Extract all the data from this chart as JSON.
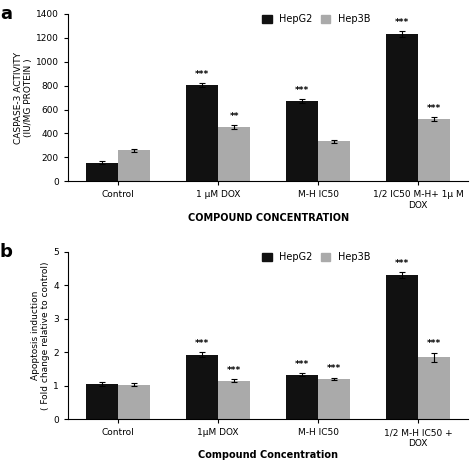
{
  "panel_a": {
    "categories": [
      "Control",
      "1 μM DOX",
      "M-H IC50",
      "1/2 IC50 M-H+ 1μ M\nDOX"
    ],
    "hepg2_values": [
      155,
      805,
      670,
      1230
    ],
    "hep3b_values": [
      260,
      455,
      335,
      520
    ],
    "hepg2_errors": [
      12,
      18,
      18,
      22
    ],
    "hep3b_errors": [
      12,
      18,
      12,
      18
    ],
    "hepg2_sig": [
      "",
      "***",
      "***",
      "***"
    ],
    "hep3b_sig": [
      "",
      "**",
      "",
      "***"
    ],
    "ylabel": "CASPASE-3 ACTIVITY\n(IU/MG PROTEIN )",
    "xlabel": "COMPOUND CONCENTRATION",
    "ylim": [
      0,
      1400
    ],
    "yticks": [
      0,
      200,
      400,
      600,
      800,
      1000,
      1200,
      1400
    ],
    "panel_label": "a"
  },
  "panel_b": {
    "categories": [
      "Control",
      "1μM DOX",
      "M-H IC50",
      "1/2 M-H IC50 +\nDOX"
    ],
    "hepg2_values": [
      1.05,
      1.93,
      1.33,
      4.3
    ],
    "hep3b_values": [
      1.03,
      1.15,
      1.2,
      1.85
    ],
    "hepg2_errors": [
      0.05,
      0.07,
      0.05,
      0.09
    ],
    "hep3b_errors": [
      0.04,
      0.05,
      0.04,
      0.14
    ],
    "hepg2_sig": [
      "",
      "***",
      "***",
      "***"
    ],
    "hep3b_sig": [
      "",
      "***",
      "***",
      "***"
    ],
    "ylabel": "Apoptosis induction\n( Fold change relative to control)",
    "xlabel": "Compound Concentration",
    "ylim": [
      0,
      5
    ],
    "yticks": [
      0,
      1,
      2,
      3,
      4,
      5
    ],
    "panel_label": "b"
  },
  "hepg2_color": "#111111",
  "hep3b_color": "#aaaaaa",
  "bar_width": 0.32,
  "legend_labels": [
    "HepG2",
    "Hep3B"
  ]
}
